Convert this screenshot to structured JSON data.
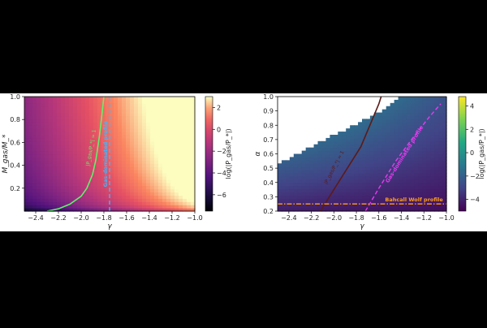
{
  "chart_data": [
    {
      "type": "heatmap",
      "xlabel": "γ",
      "ylabel": "M_gas/M_*",
      "xlim": [
        -2.5,
        -1.0
      ],
      "ylim": [
        0.0,
        1.0
      ],
      "xticks": [
        "−2.4",
        "−2.2",
        "−2.0",
        "−1.8",
        "−1.6",
        "−1.4",
        "−1.2",
        "−1.0"
      ],
      "xtick_values": [
        -2.4,
        -2.2,
        -2.0,
        -1.8,
        -1.6,
        -1.4,
        -1.2,
        -1.0
      ],
      "yticks": [
        "0.2",
        "0.4",
        "0.6",
        "0.8",
        "1.0"
      ],
      "ytick_values": [
        0.2,
        0.4,
        0.6,
        0.8,
        1.0
      ],
      "colorbar": {
        "label": "log(|P_gas/P_*|)",
        "range": [
          -7.5,
          3.0
        ],
        "ticks": [
          "2",
          "0",
          "−2",
          "−4",
          "−6"
        ],
        "tick_values": [
          2,
          0,
          -2,
          -4,
          -6
        ],
        "colormap": "magma"
      },
      "curves": [
        {
          "label": "|P_gas/P_*| = 1",
          "color": "#5ef26a",
          "style": "solid",
          "points": [
            [
              -2.3,
              0.0
            ],
            [
              -2.2,
              0.02
            ],
            [
              -2.1,
              0.06
            ],
            [
              -2.0,
              0.13
            ],
            [
              -1.95,
              0.2
            ],
            [
              -1.9,
              0.32
            ],
            [
              -1.87,
              0.45
            ],
            [
              -1.84,
              0.65
            ],
            [
              -1.82,
              0.82
            ],
            [
              -1.8,
              1.0
            ]
          ]
        },
        {
          "label": "Gas-dominated profile",
          "color": "#3db8ff",
          "style": "dashed",
          "points": [
            [
              -1.75,
              0.0
            ],
            [
              -1.75,
              1.0
            ]
          ]
        }
      ]
    },
    {
      "type": "heatmap",
      "xlabel": "γ",
      "ylabel": "α",
      "xlim": [
        -2.5,
        -1.0
      ],
      "ylim": [
        0.2,
        1.0
      ],
      "xticks": [
        "−2.4",
        "−2.2",
        "−2.0",
        "−1.8",
        "−1.6",
        "−1.4",
        "−1.2",
        "−1.0"
      ],
      "xtick_values": [
        -2.4,
        -2.2,
        -2.0,
        -1.8,
        -1.6,
        -1.4,
        -1.2,
        -1.0
      ],
      "yticks": [
        "0.2",
        "0.3",
        "0.4",
        "0.5",
        "0.6",
        "0.7",
        "0.8",
        "0.9",
        "1.0"
      ],
      "ytick_values": [
        0.2,
        0.3,
        0.4,
        0.5,
        0.6,
        0.7,
        0.8,
        0.9,
        1.0
      ],
      "colorbar": {
        "label": "log(|P_gas/P_*|)",
        "range": [
          -5.0,
          4.8
        ],
        "ticks": [
          "4",
          "2",
          "0",
          "−2",
          "−4"
        ],
        "tick_values": [
          4,
          2,
          0,
          -2,
          -4
        ],
        "colormap": "viridis"
      },
      "valid_region_boundary": [
        [
          -2.5,
          0.53
        ],
        [
          -2.0,
          0.73
        ],
        [
          -1.5,
          0.93
        ],
        [
          -1.42,
          1.0
        ]
      ],
      "curves": [
        {
          "label": "|P_gas/P_*| = 1",
          "color": "#5c1a18",
          "style": "solid",
          "points": [
            [
              -2.12,
              0.2
            ],
            [
              -2.0,
              0.35
            ],
            [
              -1.88,
              0.5
            ],
            [
              -1.76,
              0.65
            ],
            [
              -1.68,
              0.8
            ],
            [
              -1.6,
              0.95
            ],
            [
              -1.58,
              1.0
            ]
          ]
        },
        {
          "label": "Gas-dominated profile",
          "color": "#e83af0",
          "style": "dashed",
          "points": [
            [
              -1.72,
              0.2
            ],
            [
              -1.6,
              0.36
            ],
            [
              -1.45,
              0.55
            ],
            [
              -1.3,
              0.71
            ],
            [
              -1.15,
              0.86
            ],
            [
              -1.05,
              0.95
            ]
          ]
        },
        {
          "label": "Bahcall Wolf profile",
          "color": "#ff9f1a",
          "style": "dashdot",
          "points": [
            [
              -2.5,
              0.25
            ],
            [
              -1.0,
              0.25
            ]
          ]
        }
      ]
    }
  ]
}
